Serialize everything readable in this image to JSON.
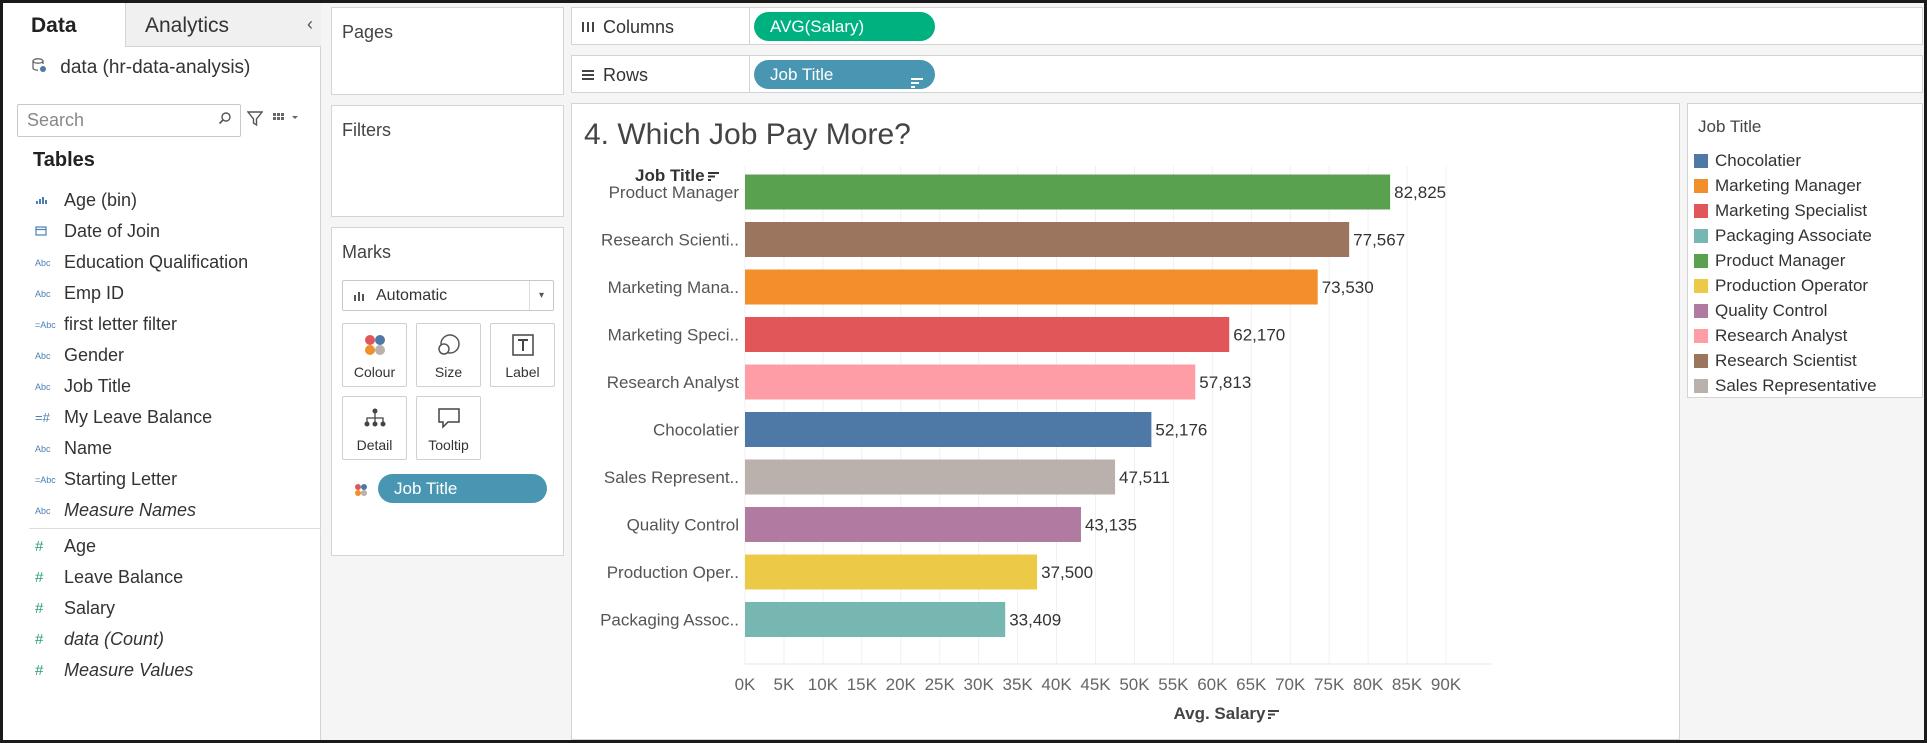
{
  "pane": {
    "tab_data": "Data",
    "tab_analytics": "Analytics",
    "datasource": "data (hr-data-analysis)",
    "search_placeholder": "Search",
    "tables_heading": "Tables",
    "dimensions": [
      {
        "name": "Age (bin)",
        "type_icon": "bin-icon"
      },
      {
        "name": "Date of Join",
        "type_icon": "calendar-icon"
      },
      {
        "name": "Education Qualification",
        "type_icon": "abc-icon"
      },
      {
        "name": "Emp ID",
        "type_icon": "abc-icon"
      },
      {
        "name": "first letter filter",
        "type_icon": "calc-abc-icon"
      },
      {
        "name": "Gender",
        "type_icon": "abc-icon"
      },
      {
        "name": "Job Title",
        "type_icon": "abc-icon"
      },
      {
        "name": "My Leave Balance",
        "type_icon": "calc-number-icon"
      },
      {
        "name": "Name",
        "type_icon": "abc-icon"
      },
      {
        "name": "Starting Letter",
        "type_icon": "calc-abc-icon"
      },
      {
        "name": "Measure Names",
        "type_icon": "abc-icon"
      }
    ],
    "measures": [
      {
        "name": "Age"
      },
      {
        "name": "Leave Balance"
      },
      {
        "name": "Salary"
      },
      {
        "name": "data (Count)"
      },
      {
        "name": "Measure Values"
      }
    ]
  },
  "cards": {
    "pages": "Pages",
    "filters": "Filters",
    "marks": "Marks",
    "mark_type": "Automatic",
    "buttons": {
      "colour": "Colour",
      "size": "Size",
      "label": "Label",
      "detail": "Detail",
      "tooltip": "Tooltip"
    },
    "color_pill": "Job Title"
  },
  "shelves": {
    "columns_label": "Columns",
    "rows_label": "Rows",
    "columns_pill": "AVG(Salary)",
    "rows_pill": "Job Title"
  },
  "viz": {
    "title": "4. Which Job Pay More?",
    "row_header": "Job Title",
    "axis_title": "Avg. Salary"
  },
  "legend": {
    "title": "Job Title",
    "items": [
      {
        "label": "Chocolatier",
        "color": "#4e79a7"
      },
      {
        "label": "Marketing Manager",
        "color": "#f28e2b"
      },
      {
        "label": "Marketing Specialist",
        "color": "#e15759"
      },
      {
        "label": "Packaging Associate",
        "color": "#76b7b2"
      },
      {
        "label": "Product Manager",
        "color": "#59a14f"
      },
      {
        "label": "Production Operator",
        "color": "#edc948"
      },
      {
        "label": "Quality Control",
        "color": "#b07aa1"
      },
      {
        "label": "Research Analyst",
        "color": "#ff9da7"
      },
      {
        "label": "Research Scientist",
        "color": "#9c755f"
      },
      {
        "label": "Sales Representative",
        "color": "#bab0ac"
      }
    ]
  },
  "chart_data": {
    "type": "bar",
    "orientation": "horizontal",
    "title": "4. Which Job Pay More?",
    "xlabel": "Avg. Salary",
    "ylabel": "Job Title",
    "xlim": [
      0,
      90000
    ],
    "x_ticks": [
      "0K",
      "5K",
      "10K",
      "15K",
      "20K",
      "25K",
      "30K",
      "35K",
      "40K",
      "45K",
      "50K",
      "55K",
      "60K",
      "65K",
      "70K",
      "75K",
      "80K",
      "85K",
      "90K"
    ],
    "grid": true,
    "categories": [
      "Product Manager",
      "Research Scienti..",
      "Marketing Mana..",
      "Marketing Speci..",
      "Research Analyst",
      "Chocolatier",
      "Sales Represent..",
      "Quality Control",
      "Production Oper..",
      "Packaging Assoc.."
    ],
    "values": [
      82825,
      77567,
      73530,
      62170,
      57813,
      52176,
      47511,
      43135,
      37500,
      33409
    ],
    "value_labels": [
      "82,825",
      "77,567",
      "73,530",
      "62,170",
      "57,813",
      "52,176",
      "47,511",
      "43,135",
      "37,500",
      "33,409"
    ],
    "colors": [
      "#59a14f",
      "#9c755f",
      "#f28e2b",
      "#e15759",
      "#ff9da7",
      "#4e79a7",
      "#bab0ac",
      "#b07aa1",
      "#edc948",
      "#76b7b2"
    ],
    "legend_position": "right"
  }
}
